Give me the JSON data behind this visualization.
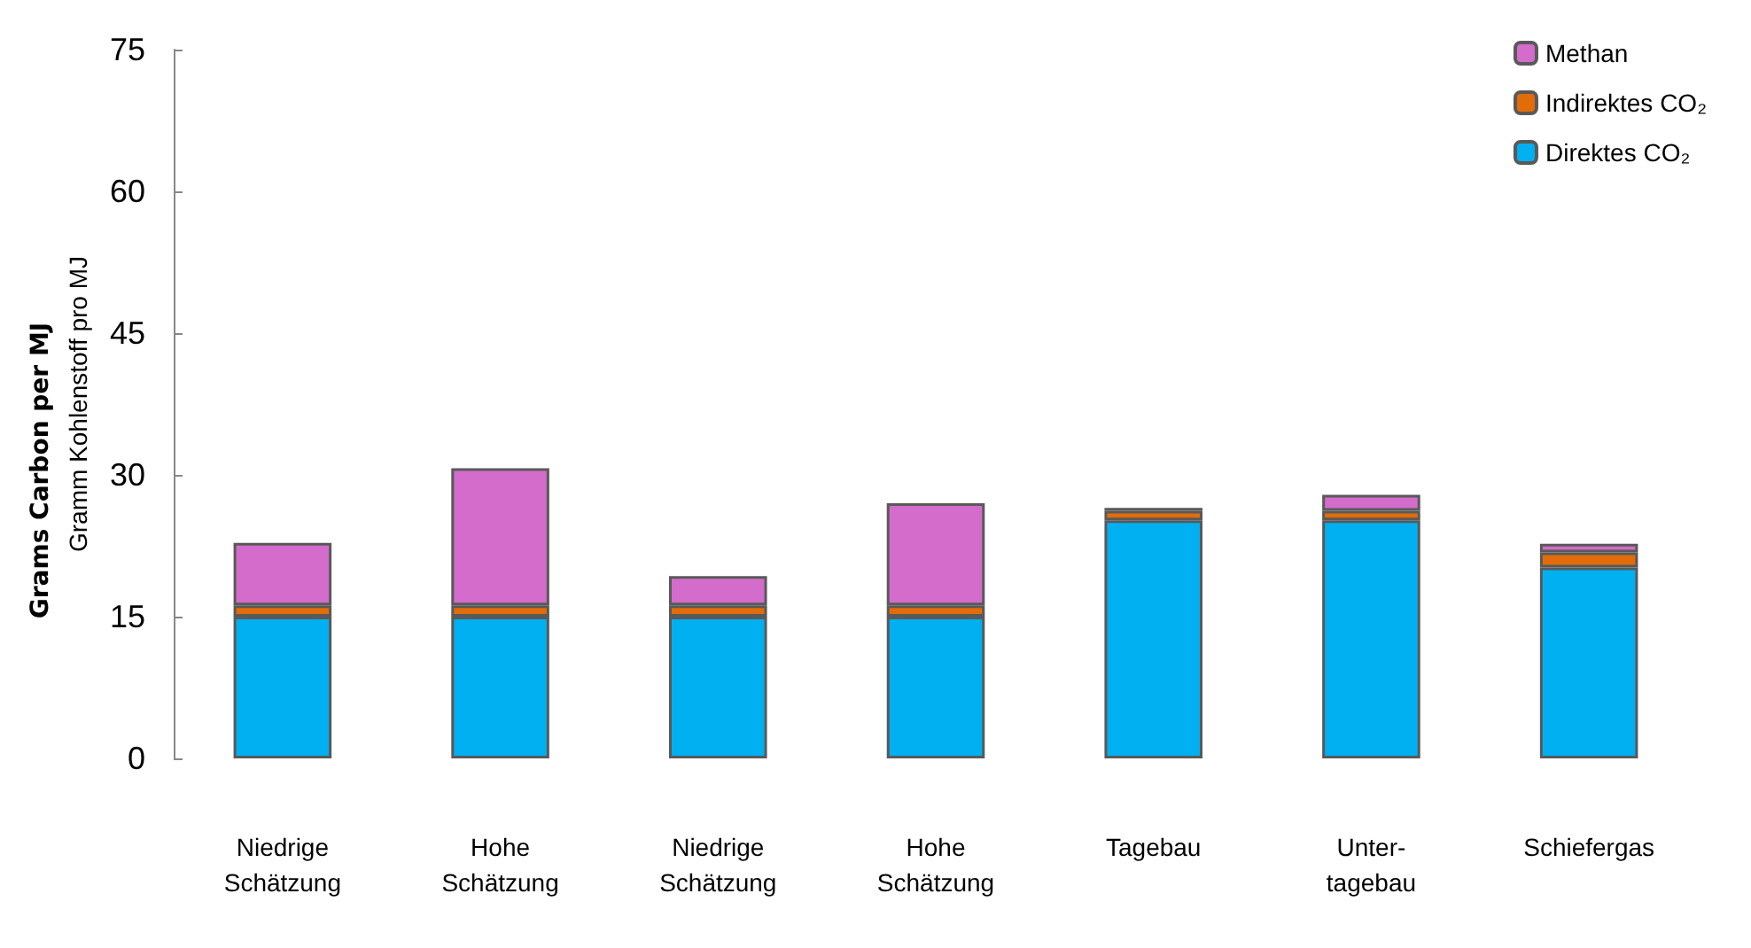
{
  "chart_data": {
    "type": "bar",
    "stacked": true,
    "ylabel": "Gramm Kohlenstoff pro MJ",
    "annotations": [
      "Grams Carbon per MJ"
    ],
    "categories": [
      "Niedrige Schätzung",
      "Hohe Schätzung",
      "Niedrige Schätzung",
      "Hohe Schätzung",
      "Tagebau",
      "Unter-tagebau",
      "Schiefergas"
    ],
    "series": [
      {
        "name": "Direktes CO₂",
        "color": "#00b0f0",
        "values": [
          15.0,
          15.0,
          15.0,
          15.0,
          25.2,
          25.2,
          20.2
        ]
      },
      {
        "name": "Indirektes CO₂",
        "color": "#e36c0a",
        "values": [
          1.2,
          1.2,
          1.2,
          1.2,
          1.0,
          1.0,
          1.6
        ]
      },
      {
        "name": "Methan",
        "color": "#d36ccb",
        "values": [
          6.6,
          14.5,
          3.1,
          10.8,
          0.3,
          1.7,
          0.9
        ]
      }
    ],
    "ylim": [
      0,
      75
    ],
    "yticks": [
      0,
      15,
      30,
      45,
      60,
      75
    ],
    "grid": false,
    "legend": "top right"
  }
}
